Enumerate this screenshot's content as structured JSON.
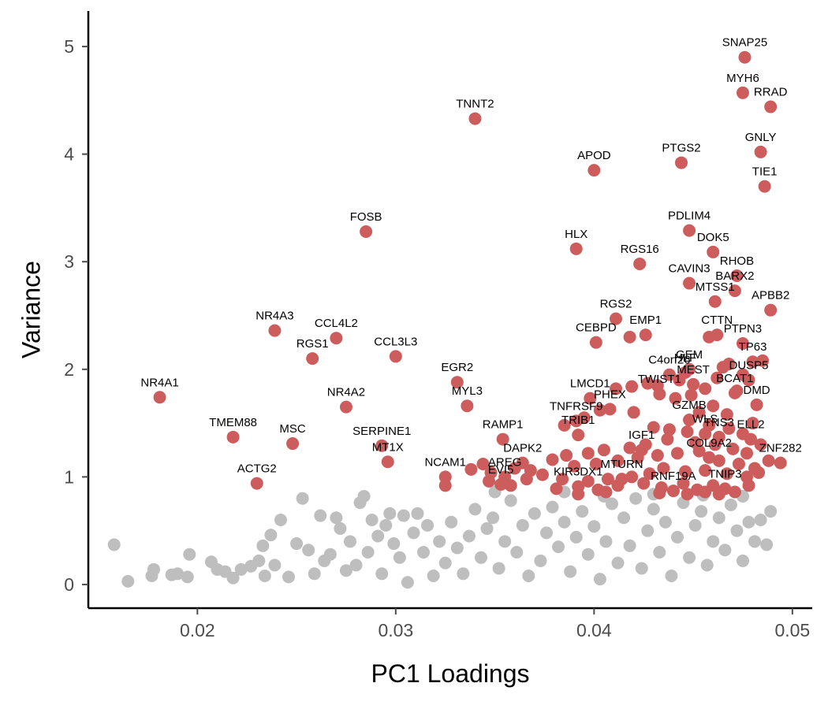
{
  "chart_data": {
    "type": "scatter",
    "title": "",
    "xlabel": "PC1 Loadings",
    "ylabel": "Variance",
    "xlim": [
      0.0145,
      0.051
    ],
    "ylim": [
      -0.22,
      5.33
    ],
    "x_ticks": [
      {
        "value": 0.02,
        "label": "0.02"
      },
      {
        "value": 0.03,
        "label": "0.03"
      },
      {
        "value": 0.04,
        "label": "0.04"
      },
      {
        "value": 0.05,
        "label": "0.05"
      }
    ],
    "y_ticks": [
      {
        "value": 0,
        "label": "0"
      },
      {
        "value": 1,
        "label": "1"
      },
      {
        "value": 2,
        "label": "2"
      },
      {
        "value": 3,
        "label": "3"
      },
      {
        "value": 4,
        "label": "4"
      },
      {
        "value": 5,
        "label": "5"
      }
    ],
    "grid": false,
    "legend": "none",
    "colors": {
      "highlighted": "#cd5c5c",
      "background": "#bebebe",
      "axis": "#000000",
      "tick_text": "#4d4d4d"
    },
    "labeled_points": [
      {
        "gene": "SNAP25",
        "x": 0.0476,
        "y": 4.9
      },
      {
        "gene": "MYH6",
        "x": 0.0475,
        "y": 4.57
      },
      {
        "gene": "RRAD",
        "x": 0.0489,
        "y": 4.44
      },
      {
        "gene": "TNNT2",
        "x": 0.034,
        "y": 4.33
      },
      {
        "gene": "GNLY",
        "x": 0.0484,
        "y": 4.02
      },
      {
        "gene": "PTGS2",
        "x": 0.0444,
        "y": 3.92
      },
      {
        "gene": "APOD",
        "x": 0.04,
        "y": 3.85
      },
      {
        "gene": "TIE1",
        "x": 0.0486,
        "y": 3.7
      },
      {
        "gene": "FOSB",
        "x": 0.0285,
        "y": 3.28
      },
      {
        "gene": "PDLIM4",
        "x": 0.0448,
        "y": 3.29
      },
      {
        "gene": "HLX",
        "x": 0.0391,
        "y": 3.12
      },
      {
        "gene": "DOK5",
        "x": 0.046,
        "y": 3.09
      },
      {
        "gene": "RGS16",
        "x": 0.0423,
        "y": 2.98
      },
      {
        "gene": "RHOB",
        "x": 0.0472,
        "y": 2.87
      },
      {
        "gene": "CAVIN3",
        "x": 0.0448,
        "y": 2.8
      },
      {
        "gene": "BARX2",
        "x": 0.0471,
        "y": 2.73
      },
      {
        "gene": "MTSS1",
        "x": 0.0461,
        "y": 2.63
      },
      {
        "gene": "APBB2",
        "x": 0.0489,
        "y": 2.55
      },
      {
        "gene": "RGS2",
        "x": 0.0411,
        "y": 2.47
      },
      {
        "gene": "EMP1",
        "x": 0.0426,
        "y": 2.32
      },
      {
        "gene": "NR4A3",
        "x": 0.0239,
        "y": 2.36
      },
      {
        "gene": "CCL4L2",
        "x": 0.027,
        "y": 2.29
      },
      {
        "gene": "CTTN",
        "x": 0.0462,
        "y": 2.32
      },
      {
        "gene": "PTPN3",
        "x": 0.0475,
        "y": 2.24
      },
      {
        "gene": "CEBPD",
        "x": 0.0401,
        "y": 2.25
      },
      {
        "gene": "RGS1",
        "x": 0.0258,
        "y": 2.1
      },
      {
        "gene": "CCL3L3",
        "x": 0.03,
        "y": 2.12
      },
      {
        "gene": "GEM",
        "x": 0.0448,
        "y": 2.0
      },
      {
        "gene": "TP63",
        "x": 0.048,
        "y": 2.07
      },
      {
        "gene": "C4orf26",
        "x": 0.0438,
        "y": 1.95
      },
      {
        "gene": "HLF",
        "x": 0.0446,
        "y": 1.97
      },
      {
        "gene": "MEST",
        "x": 0.045,
        "y": 1.86
      },
      {
        "gene": "DUSP5",
        "x": 0.0478,
        "y": 1.9
      },
      {
        "gene": "EGR2",
        "x": 0.0331,
        "y": 1.88
      },
      {
        "gene": "NR4A1",
        "x": 0.0181,
        "y": 1.74
      },
      {
        "gene": "LMCD1",
        "x": 0.0398,
        "y": 1.73
      },
      {
        "gene": "TWIST1",
        "x": 0.0433,
        "y": 1.77
      },
      {
        "gene": "BCAT1",
        "x": 0.0471,
        "y": 1.78
      },
      {
        "gene": "PHEX",
        "x": 0.0408,
        "y": 1.63
      },
      {
        "gene": "MYL3",
        "x": 0.0336,
        "y": 1.66
      },
      {
        "gene": "NR4A2",
        "x": 0.0275,
        "y": 1.65
      },
      {
        "gene": "DMD",
        "x": 0.0482,
        "y": 1.67
      },
      {
        "gene": "TNFRSF9",
        "x": 0.0391,
        "y": 1.52
      },
      {
        "gene": "GZMB",
        "x": 0.0448,
        "y": 1.53
      },
      {
        "gene": "TRIB1",
        "x": 0.0392,
        "y": 1.39
      },
      {
        "gene": "RAMP1",
        "x": 0.0354,
        "y": 1.35
      },
      {
        "gene": "WLS",
        "x": 0.0456,
        "y": 1.4
      },
      {
        "gene": "TNS3",
        "x": 0.0463,
        "y": 1.37
      },
      {
        "gene": "ELL2",
        "x": 0.0479,
        "y": 1.35
      },
      {
        "gene": "TMEM88",
        "x": 0.0218,
        "y": 1.37
      },
      {
        "gene": "SERPINE1",
        "x": 0.0293,
        "y": 1.29
      },
      {
        "gene": "MSC",
        "x": 0.0248,
        "y": 1.31
      },
      {
        "gene": "DAPK2",
        "x": 0.0364,
        "y": 1.13
      },
      {
        "gene": "IGF1",
        "x": 0.0424,
        "y": 1.25
      },
      {
        "gene": "MT1X",
        "x": 0.0296,
        "y": 1.14
      },
      {
        "gene": "COL9A2",
        "x": 0.0458,
        "y": 1.18
      },
      {
        "gene": "ZNF282",
        "x": 0.0494,
        "y": 1.13
      },
      {
        "gene": "AREG",
        "x": 0.0355,
        "y": 1.0
      },
      {
        "gene": "NCAM1",
        "x": 0.0325,
        "y": 1.0
      },
      {
        "gene": "EVI5",
        "x": 0.0353,
        "y": 0.93
      },
      {
        "gene": "KIR3DX1",
        "x": 0.0392,
        "y": 0.91
      },
      {
        "gene": "MTURN",
        "x": 0.0414,
        "y": 0.98
      },
      {
        "gene": "RNF19A",
        "x": 0.044,
        "y": 0.87
      },
      {
        "gene": "TNIP3",
        "x": 0.0466,
        "y": 0.89
      },
      {
        "gene": "ACTG2",
        "x": 0.023,
        "y": 0.94
      }
    ],
    "highlighted_points": [
      {
        "x": 0.0485,
        "y": 2.08
      },
      {
        "x": 0.0468,
        "y": 2.05
      },
      {
        "x": 0.0458,
        "y": 2.3
      },
      {
        "x": 0.0418,
        "y": 2.3
      },
      {
        "x": 0.0465,
        "y": 2.02
      },
      {
        "x": 0.0475,
        "y": 1.95
      },
      {
        "x": 0.0462,
        "y": 1.92
      },
      {
        "x": 0.0443,
        "y": 1.9
      },
      {
        "x": 0.0427,
        "y": 1.87
      },
      {
        "x": 0.0419,
        "y": 1.84
      },
      {
        "x": 0.0411,
        "y": 1.82
      },
      {
        "x": 0.0432,
        "y": 1.85
      },
      {
        "x": 0.0456,
        "y": 1.82
      },
      {
        "x": 0.0472,
        "y": 1.8
      },
      {
        "x": 0.0449,
        "y": 1.76
      },
      {
        "x": 0.0441,
        "y": 1.73
      },
      {
        "x": 0.046,
        "y": 1.66
      },
      {
        "x": 0.0453,
        "y": 1.6
      },
      {
        "x": 0.0467,
        "y": 1.58
      },
      {
        "x": 0.048,
        "y": 1.5
      },
      {
        "x": 0.042,
        "y": 1.6
      },
      {
        "x": 0.0403,
        "y": 1.62
      },
      {
        "x": 0.0395,
        "y": 1.55
      },
      {
        "x": 0.0385,
        "y": 1.48
      },
      {
        "x": 0.043,
        "y": 1.46
      },
      {
        "x": 0.0438,
        "y": 1.44
      },
      {
        "x": 0.0447,
        "y": 1.42
      },
      {
        "x": 0.0458,
        "y": 1.48
      },
      {
        "x": 0.0468,
        "y": 1.45
      },
      {
        "x": 0.0475,
        "y": 1.4
      },
      {
        "x": 0.0437,
        "y": 1.35
      },
      {
        "x": 0.0451,
        "y": 1.32
      },
      {
        "x": 0.0461,
        "y": 1.3
      },
      {
        "x": 0.047,
        "y": 1.26
      },
      {
        "x": 0.0477,
        "y": 1.22
      },
      {
        "x": 0.0484,
        "y": 1.3
      },
      {
        "x": 0.0426,
        "y": 1.3
      },
      {
        "x": 0.0418,
        "y": 1.27
      },
      {
        "x": 0.0405,
        "y": 1.25
      },
      {
        "x": 0.0397,
        "y": 1.22
      },
      {
        "x": 0.0386,
        "y": 1.2
      },
      {
        "x": 0.0379,
        "y": 1.16
      },
      {
        "x": 0.039,
        "y": 1.1
      },
      {
        "x": 0.0401,
        "y": 1.12
      },
      {
        "x": 0.0412,
        "y": 1.15
      },
      {
        "x": 0.0422,
        "y": 1.18
      },
      {
        "x": 0.0432,
        "y": 1.2
      },
      {
        "x": 0.0442,
        "y": 1.22
      },
      {
        "x": 0.0453,
        "y": 1.24
      },
      {
        "x": 0.0463,
        "y": 1.15
      },
      {
        "x": 0.0473,
        "y": 1.12
      },
      {
        "x": 0.0481,
        "y": 1.08
      },
      {
        "x": 0.0488,
        "y": 1.15
      },
      {
        "x": 0.0435,
        "y": 1.08
      },
      {
        "x": 0.0446,
        "y": 1.05
      },
      {
        "x": 0.0456,
        "y": 1.06
      },
      {
        "x": 0.0467,
        "y": 1.03
      },
      {
        "x": 0.0477,
        "y": 1.0
      },
      {
        "x": 0.0483,
        "y": 1.04
      },
      {
        "x": 0.0428,
        "y": 1.03
      },
      {
        "x": 0.0419,
        "y": 1.0
      },
      {
        "x": 0.0407,
        "y": 0.98
      },
      {
        "x": 0.0397,
        "y": 0.96
      },
      {
        "x": 0.0384,
        "y": 0.98
      },
      {
        "x": 0.0374,
        "y": 1.02
      },
      {
        "x": 0.0368,
        "y": 1.06
      },
      {
        "x": 0.036,
        "y": 1.08
      },
      {
        "x": 0.0348,
        "y": 1.04
      },
      {
        "x": 0.0344,
        "y": 1.12
      },
      {
        "x": 0.0366,
        "y": 0.98
      },
      {
        "x": 0.0358,
        "y": 0.92
      },
      {
        "x": 0.0347,
        "y": 0.96
      },
      {
        "x": 0.0338,
        "y": 1.07
      },
      {
        "x": 0.0325,
        "y": 0.92
      },
      {
        "x": 0.0381,
        "y": 0.89
      },
      {
        "x": 0.0402,
        "y": 0.88
      },
      {
        "x": 0.0412,
        "y": 0.92
      },
      {
        "x": 0.0425,
        "y": 0.94
      },
      {
        "x": 0.0434,
        "y": 0.9
      },
      {
        "x": 0.0445,
        "y": 0.94
      },
      {
        "x": 0.0452,
        "y": 0.88
      },
      {
        "x": 0.046,
        "y": 0.92
      },
      {
        "x": 0.0471,
        "y": 0.86
      },
      {
        "x": 0.0478,
        "y": 0.92
      },
      {
        "x": 0.0433,
        "y": 0.85
      },
      {
        "x": 0.0447,
        "y": 0.84
      },
      {
        "x": 0.0456,
        "y": 0.86
      },
      {
        "x": 0.0463,
        "y": 0.84
      },
      {
        "x": 0.0392,
        "y": 0.84
      },
      {
        "x": 0.0406,
        "y": 0.86
      }
    ],
    "background_points": [
      {
        "x": 0.0158,
        "y": 0.37
      },
      {
        "x": 0.0165,
        "y": 0.03
      },
      {
        "x": 0.0177,
        "y": 0.08
      },
      {
        "x": 0.0178,
        "y": 0.14
      },
      {
        "x": 0.0187,
        "y": 0.09
      },
      {
        "x": 0.019,
        "y": 0.1
      },
      {
        "x": 0.0195,
        "y": 0.07
      },
      {
        "x": 0.0196,
        "y": 0.28
      },
      {
        "x": 0.0207,
        "y": 0.21
      },
      {
        "x": 0.021,
        "y": 0.14
      },
      {
        "x": 0.0214,
        "y": 0.12
      },
      {
        "x": 0.0218,
        "y": 0.06
      },
      {
        "x": 0.0222,
        "y": 0.14
      },
      {
        "x": 0.0227,
        "y": 0.17
      },
      {
        "x": 0.0231,
        "y": 0.22
      },
      {
        "x": 0.0233,
        "y": 0.36
      },
      {
        "x": 0.0234,
        "y": 0.08
      },
      {
        "x": 0.0237,
        "y": 0.46
      },
      {
        "x": 0.0239,
        "y": 0.18
      },
      {
        "x": 0.0242,
        "y": 0.6
      },
      {
        "x": 0.0246,
        "y": 0.07
      },
      {
        "x": 0.025,
        "y": 0.38
      },
      {
        "x": 0.0253,
        "y": 0.8
      },
      {
        "x": 0.0256,
        "y": 0.32
      },
      {
        "x": 0.0259,
        "y": 0.1
      },
      {
        "x": 0.0262,
        "y": 0.64
      },
      {
        "x": 0.0264,
        "y": 0.22
      },
      {
        "x": 0.0267,
        "y": 0.28
      },
      {
        "x": 0.027,
        "y": 0.62
      },
      {
        "x": 0.0272,
        "y": 0.52
      },
      {
        "x": 0.0275,
        "y": 0.13
      },
      {
        "x": 0.0277,
        "y": 0.4
      },
      {
        "x": 0.028,
        "y": 0.18
      },
      {
        "x": 0.0282,
        "y": 0.76
      },
      {
        "x": 0.0284,
        "y": 0.82
      },
      {
        "x": 0.0286,
        "y": 0.3
      },
      {
        "x": 0.0288,
        "y": 0.6
      },
      {
        "x": 0.0291,
        "y": 0.45
      },
      {
        "x": 0.0293,
        "y": 0.1
      },
      {
        "x": 0.0295,
        "y": 0.55
      },
      {
        "x": 0.0297,
        "y": 0.66
      },
      {
        "x": 0.0299,
        "y": 0.38
      },
      {
        "x": 0.0302,
        "y": 0.25
      },
      {
        "x": 0.0304,
        "y": 0.64
      },
      {
        "x": 0.0306,
        "y": 0.02
      },
      {
        "x": 0.0309,
        "y": 0.48
      },
      {
        "x": 0.0311,
        "y": 0.66
      },
      {
        "x": 0.0314,
        "y": 0.3
      },
      {
        "x": 0.0316,
        "y": 0.55
      },
      {
        "x": 0.0319,
        "y": 0.08
      },
      {
        "x": 0.0322,
        "y": 0.4
      },
      {
        "x": 0.0325,
        "y": 0.2
      },
      {
        "x": 0.0328,
        "y": 0.58
      },
      {
        "x": 0.0331,
        "y": 0.34
      },
      {
        "x": 0.0334,
        "y": 0.1
      },
      {
        "x": 0.0337,
        "y": 0.45
      },
      {
        "x": 0.034,
        "y": 0.7
      },
      {
        "x": 0.0343,
        "y": 0.25
      },
      {
        "x": 0.0346,
        "y": 0.52
      },
      {
        "x": 0.0349,
        "y": 0.62
      },
      {
        "x": 0.0352,
        "y": 0.15
      },
      {
        "x": 0.0355,
        "y": 0.4
      },
      {
        "x": 0.0358,
        "y": 0.78
      },
      {
        "x": 0.0361,
        "y": 0.3
      },
      {
        "x": 0.0364,
        "y": 0.55
      },
      {
        "x": 0.0367,
        "y": 0.08
      },
      {
        "x": 0.037,
        "y": 0.66
      },
      {
        "x": 0.0373,
        "y": 0.22
      },
      {
        "x": 0.0376,
        "y": 0.48
      },
      {
        "x": 0.0379,
        "y": 0.72
      },
      {
        "x": 0.0382,
        "y": 0.35
      },
      {
        "x": 0.0385,
        "y": 0.58
      },
      {
        "x": 0.0388,
        "y": 0.12
      },
      {
        "x": 0.0391,
        "y": 0.44
      },
      {
        "x": 0.0394,
        "y": 0.68
      },
      {
        "x": 0.0397,
        "y": 0.28
      },
      {
        "x": 0.04,
        "y": 0.54
      },
      {
        "x": 0.0403,
        "y": 0.05
      },
      {
        "x": 0.0406,
        "y": 0.4
      },
      {
        "x": 0.0409,
        "y": 0.75
      },
      {
        "x": 0.0412,
        "y": 0.2
      },
      {
        "x": 0.0415,
        "y": 0.62
      },
      {
        "x": 0.0418,
        "y": 0.36
      },
      {
        "x": 0.0421,
        "y": 0.8
      },
      {
        "x": 0.0424,
        "y": 0.15
      },
      {
        "x": 0.0427,
        "y": 0.5
      },
      {
        "x": 0.043,
        "y": 0.7
      },
      {
        "x": 0.0433,
        "y": 0.3
      },
      {
        "x": 0.0436,
        "y": 0.58
      },
      {
        "x": 0.0439,
        "y": 0.08
      },
      {
        "x": 0.0442,
        "y": 0.44
      },
      {
        "x": 0.0445,
        "y": 0.76
      },
      {
        "x": 0.0448,
        "y": 0.25
      },
      {
        "x": 0.0451,
        "y": 0.55
      },
      {
        "x": 0.0454,
        "y": 0.68
      },
      {
        "x": 0.0457,
        "y": 0.18
      },
      {
        "x": 0.046,
        "y": 0.4
      },
      {
        "x": 0.0463,
        "y": 0.62
      },
      {
        "x": 0.0466,
        "y": 0.32
      },
      {
        "x": 0.0469,
        "y": 0.74
      },
      {
        "x": 0.0472,
        "y": 0.5
      },
      {
        "x": 0.0475,
        "y": 0.22
      },
      {
        "x": 0.0478,
        "y": 0.58
      },
      {
        "x": 0.0481,
        "y": 0.4
      },
      {
        "x": 0.0484,
        "y": 0.6
      },
      {
        "x": 0.0487,
        "y": 0.37
      },
      {
        "x": 0.0489,
        "y": 0.68
      },
      {
        "x": 0.035,
        "y": 0.86
      },
      {
        "x": 0.0385,
        "y": 0.86
      },
      {
        "x": 0.0405,
        "y": 0.82
      },
      {
        "x": 0.043,
        "y": 0.84
      },
      {
        "x": 0.0455,
        "y": 0.83
      },
      {
        "x": 0.0475,
        "y": 0.82
      }
    ]
  }
}
